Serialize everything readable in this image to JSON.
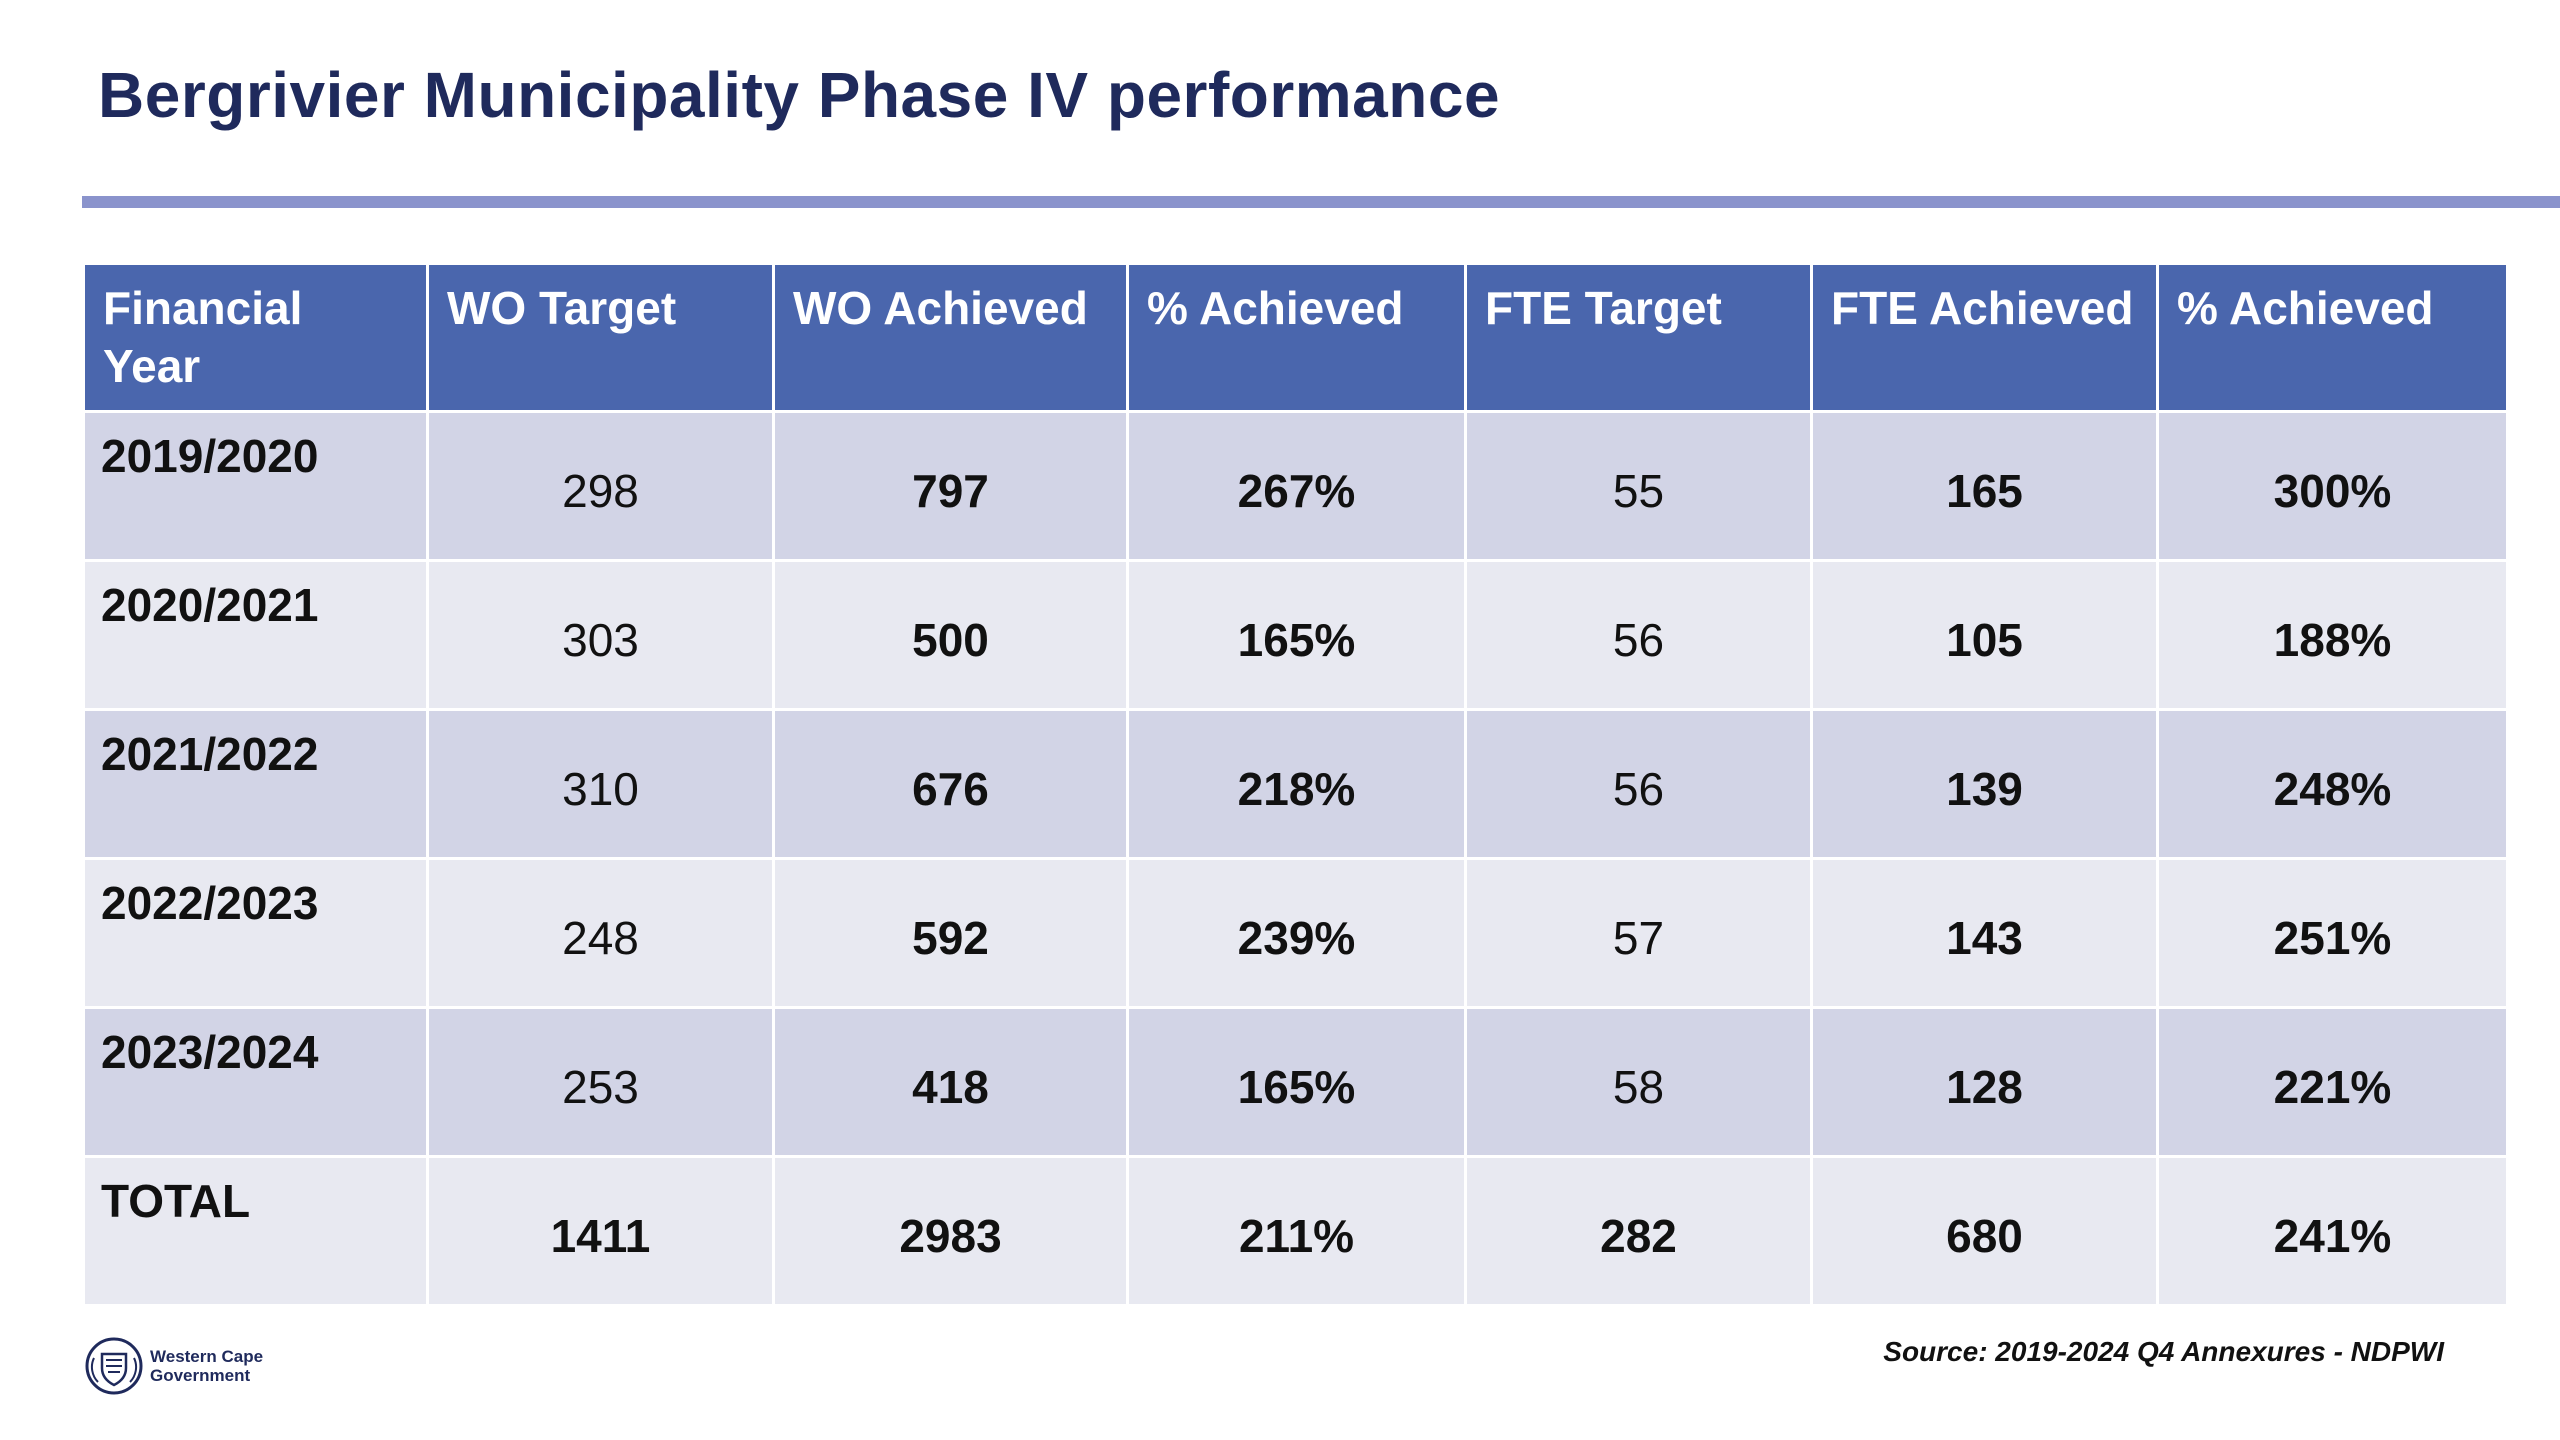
{
  "title": "Bergrivier Municipality Phase IV performance",
  "colors": {
    "title": "#1f2a5c",
    "accent_rule": "#8a93cc",
    "header_bg": "#4a66ad",
    "row_dark": "#d2d4e6",
    "row_light": "#e8e9f1"
  },
  "table": {
    "headers": [
      "Financial Year",
      "WO Target",
      "WO Achieved",
      "% Achieved",
      "FTE Target",
      "FTE Achieved",
      "% Achieved"
    ],
    "rows": [
      [
        "2019/2020",
        "298",
        "797",
        "267%",
        "55",
        "165",
        "300%"
      ],
      [
        "2020/2021",
        "303",
        "500",
        "165%",
        "56",
        "105",
        "188%"
      ],
      [
        "2021/2022",
        "310",
        "676",
        "218%",
        "56",
        "139",
        "248%"
      ],
      [
        "2022/2023",
        "248",
        "592",
        "239%",
        "57",
        "143",
        "251%"
      ],
      [
        "2023/2024",
        "253",
        "418",
        "165%",
        "58",
        "128",
        "221%"
      ],
      [
        "TOTAL",
        "1411",
        "2983",
        "211%",
        "282",
        "680",
        "241%"
      ]
    ]
  },
  "footer": {
    "logo_line1": "Western Cape",
    "logo_line2": "Government",
    "logo_icon": "coat-of-arms-icon",
    "source": "Source: 2019-2024 Q4 Annexures - NDPWI"
  }
}
